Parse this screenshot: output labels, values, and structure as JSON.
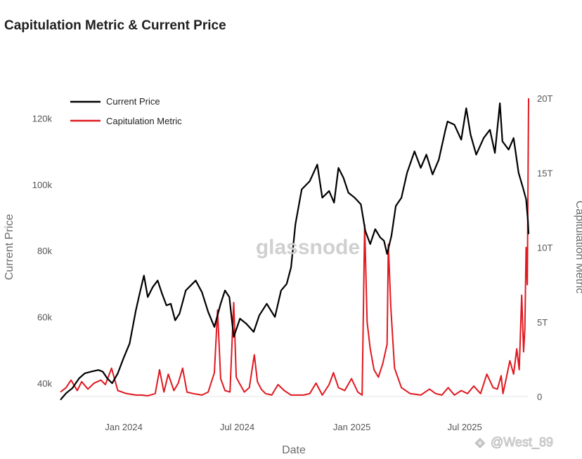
{
  "title": "Capitulation Metric & Current Price",
  "watermark": "glassnode",
  "credit": "@West_89",
  "chart_data": {
    "type": "line",
    "title": "Capitulation Metric & Current Price",
    "xlabel": "Date",
    "ylabel": "Current Price",
    "y2label": "Capitulation Metric",
    "x_ticks": [
      "Jan 2024",
      "Jul 2024",
      "Jan 2025",
      "Jul 2025"
    ],
    "y_ticks": [
      "40k",
      "60k",
      "80k",
      "100k",
      "120k"
    ],
    "y2_ticks": [
      "0",
      "5T",
      "10T",
      "15T",
      "20T"
    ],
    "ylim": [
      36000,
      126000
    ],
    "y2lim": [
      0,
      20000000000000
    ],
    "legend_position": "top-left",
    "colors": {
      "price": "#000000",
      "capitulation": "#e0181f"
    },
    "series": [
      {
        "name": "Current Price",
        "axis": "left",
        "x": [
          "2023-11-01",
          "2023-11-10",
          "2023-11-20",
          "2023-12-01",
          "2023-12-10",
          "2023-12-20",
          "2024-01-01",
          "2024-01-08",
          "2024-01-15",
          "2024-01-23",
          "2024-02-01",
          "2024-02-10",
          "2024-02-20",
          "2024-03-01",
          "2024-03-07",
          "2024-03-14",
          "2024-03-20",
          "2024-03-28",
          "2024-04-05",
          "2024-04-12",
          "2024-04-19",
          "2024-04-26",
          "2024-05-03",
          "2024-05-10",
          "2024-05-20",
          "2024-05-28",
          "2024-06-05",
          "2024-06-15",
          "2024-06-25",
          "2024-07-05",
          "2024-07-15",
          "2024-07-22",
          "2024-07-29",
          "2024-08-05",
          "2024-08-15",
          "2024-08-25",
          "2024-09-06",
          "2024-09-15",
          "2024-09-27",
          "2024-10-10",
          "2024-10-20",
          "2024-10-29",
          "2024-11-05",
          "2024-11-12",
          "2024-11-22",
          "2024-12-05",
          "2024-12-17",
          "2024-12-25",
          "2025-01-05",
          "2025-01-13",
          "2025-01-20",
          "2025-01-28",
          "2025-02-05",
          "2025-02-15",
          "2025-02-25",
          "2025-03-04",
          "2025-03-12",
          "2025-03-20",
          "2025-03-28",
          "2025-04-03",
          "2025-04-08",
          "2025-04-15",
          "2025-04-22",
          "2025-05-01",
          "2025-05-10",
          "2025-05-22",
          "2025-06-01",
          "2025-06-10",
          "2025-06-20",
          "2025-06-30",
          "2025-07-10",
          "2025-07-14",
          "2025-07-25",
          "2025-08-05",
          "2025-08-13",
          "2025-08-20",
          "2025-08-29",
          "2025-09-10",
          "2025-09-20",
          "2025-09-28",
          "2025-10-06",
          "2025-10-10",
          "2025-10-20",
          "2025-10-28",
          "2025-11-05",
          "2025-11-12",
          "2025-11-17",
          "2025-11-20",
          "2025-11-21"
        ],
        "values": [
          35000,
          37000,
          38500,
          41500,
          43000,
          43500,
          44000,
          43500,
          41500,
          40000,
          43000,
          47500,
          52000,
          62000,
          67000,
          72500,
          66000,
          69000,
          71000,
          67000,
          63500,
          64000,
          59000,
          61000,
          68000,
          69500,
          71000,
          67500,
          61500,
          57000,
          64000,
          68000,
          66000,
          54000,
          59500,
          58000,
          55500,
          60500,
          64000,
          60000,
          68000,
          70000,
          75000,
          88000,
          98500,
          101000,
          106000,
          96000,
          98000,
          94500,
          105000,
          102000,
          97500,
          96000,
          94000,
          86000,
          82000,
          86500,
          84000,
          83000,
          79000,
          84500,
          93500,
          96000,
          103500,
          110000,
          105000,
          109000,
          103000,
          107500,
          116000,
          119000,
          118000,
          113500,
          123000,
          115000,
          109000,
          114000,
          116500,
          109500,
          124500,
          113000,
          110500,
          114000,
          103500,
          99000,
          95500,
          89000,
          85000
        ]
      },
      {
        "name": "Capitulation Metric",
        "axis": "right",
        "x": [
          "2023-11-01",
          "2023-11-10",
          "2023-11-18",
          "2023-11-28",
          "2023-12-05",
          "2023-12-15",
          "2023-12-25",
          "2024-01-05",
          "2024-01-12",
          "2024-01-22",
          "2024-02-01",
          "2024-02-15",
          "2024-03-01",
          "2024-03-10",
          "2024-03-20",
          "2024-04-01",
          "2024-04-08",
          "2024-04-15",
          "2024-04-22",
          "2024-05-01",
          "2024-05-08",
          "2024-05-15",
          "2024-05-22",
          "2024-06-01",
          "2024-06-15",
          "2024-06-25",
          "2024-07-05",
          "2024-07-10",
          "2024-07-15",
          "2024-07-22",
          "2024-07-30",
          "2024-08-05",
          "2024-08-09",
          "2024-08-14",
          "2024-08-22",
          "2024-08-30",
          "2024-09-07",
          "2024-09-12",
          "2024-09-18",
          "2024-09-25",
          "2024-10-05",
          "2024-10-15",
          "2024-10-25",
          "2024-11-05",
          "2024-11-15",
          "2024-11-25",
          "2024-12-05",
          "2024-12-15",
          "2024-12-25",
          "2025-01-05",
          "2025-01-12",
          "2025-01-20",
          "2025-01-30",
          "2025-02-10",
          "2025-02-20",
          "2025-02-27",
          "2025-03-03",
          "2025-03-07",
          "2025-03-12",
          "2025-03-18",
          "2025-03-25",
          "2025-04-01",
          "2025-04-08",
          "2025-04-10",
          "2025-04-14",
          "2025-04-20",
          "2025-05-01",
          "2025-05-15",
          "2025-06-01",
          "2025-06-15",
          "2025-06-25",
          "2025-07-05",
          "2025-07-15",
          "2025-07-25",
          "2025-08-05",
          "2025-08-15",
          "2025-08-25",
          "2025-09-05",
          "2025-09-15",
          "2025-09-25",
          "2025-10-02",
          "2025-10-08",
          "2025-10-11",
          "2025-10-16",
          "2025-10-22",
          "2025-10-28",
          "2025-11-02",
          "2025-11-06",
          "2025-11-10",
          "2025-11-13",
          "2025-11-15",
          "2025-11-17",
          "2025-11-19",
          "2025-11-21"
        ],
        "values": [
          300000000000.0,
          600000000000.0,
          1100000000000.0,
          400000000000.0,
          1000000000000.0,
          500000000000.0,
          900000000000.0,
          1100000000000.0,
          800000000000.0,
          1900000000000.0,
          400000000000.0,
          200000000000.0,
          100000000000.0,
          100000000000.0,
          50000000000.0,
          200000000000.0,
          1800000000000.0,
          300000000000.0,
          1500000000000.0,
          400000000000.0,
          900000000000.0,
          1900000000000.0,
          300000000000.0,
          200000000000.0,
          100000000000.0,
          300000000000.0,
          1600000000000.0,
          5800000000000.0,
          1200000000000.0,
          400000000000.0,
          300000000000.0,
          6300000000000.0,
          1300000000000.0,
          900000000000.0,
          300000000000.0,
          600000000000.0,
          2800000000000.0,
          1000000000000.0,
          500000000000.0,
          200000000000.0,
          100000000000.0,
          800000000000.0,
          400000000000.0,
          100000000000.0,
          100000000000.0,
          100000000000.0,
          200000000000.0,
          900000000000.0,
          100000000000.0,
          800000000000.0,
          1600000000000.0,
          600000000000.0,
          400000000000.0,
          1200000000000.0,
          300000000000.0,
          100000000000.0,
          11500000000000.0,
          5000000000000.0,
          3200000000000.0,
          1800000000000.0,
          1300000000000.0,
          2200000000000.0,
          3500000000000.0,
          10200000000000.0,
          6000000000000.0,
          1900000000000.0,
          600000000000.0,
          200000000000.0,
          100000000000.0,
          500000000000.0,
          200000000000.0,
          100000000000.0,
          600000000000.0,
          100000000000.0,
          400000000000.0,
          200000000000.0,
          700000000000.0,
          200000000000.0,
          1500000000000.0,
          600000000000.0,
          500000000000.0,
          1400000000000.0,
          200000000000.0,
          1200000000000.0,
          2400000000000.0,
          1500000000000.0,
          3200000000000.0,
          1800000000000.0,
          6800000000000.0,
          3000000000000.0,
          4500000000000.0,
          10000000000000.0,
          7500000000000.0,
          20000000000000.0
        ]
      }
    ]
  }
}
